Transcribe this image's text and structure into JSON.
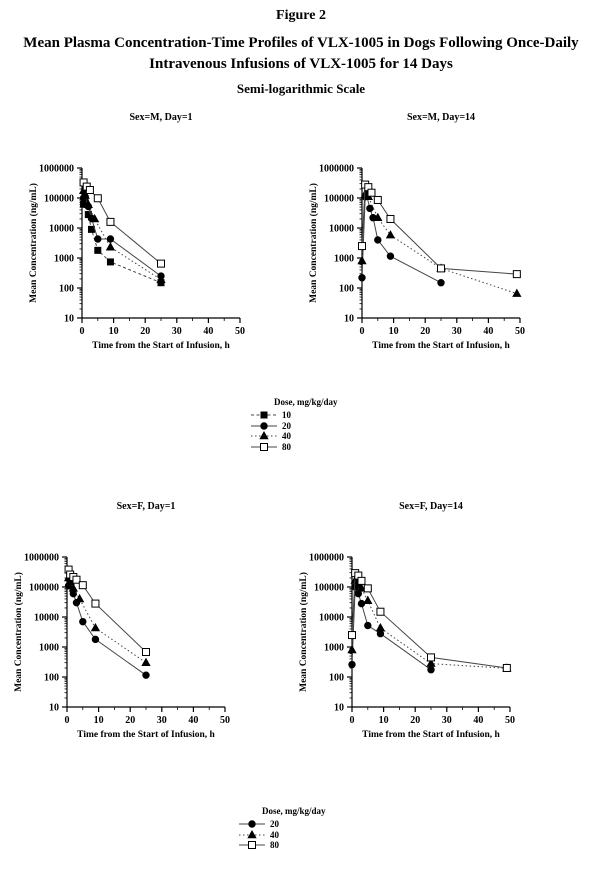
{
  "header": {
    "figure_label": "Figure 2",
    "title": "Mean Plasma Concentration-Time Profiles of VLX-1005 in Dogs Following Once-Daily Intravenous Infusions of VLX-1005 for 14 Days",
    "scale_note": "Semi-logarithmic Scale"
  },
  "axes": {
    "xlabel": "Time from the Start of Infusion, h",
    "ylabel": "Mean Concentration (ng/mL)",
    "xlim": [
      0,
      50
    ],
    "ylim": [
      10,
      1000000
    ],
    "x_major_ticks": [
      0,
      10,
      20,
      30,
      40,
      50
    ],
    "x_minor_ticks": [
      5,
      15,
      25,
      35,
      45
    ],
    "y_major_ticks": [
      10,
      100,
      1000,
      10000,
      100000,
      1000000
    ],
    "y_scale": "log",
    "grid": "off"
  },
  "marker_styles": {
    "10": {
      "shape": "square",
      "open": false,
      "dash": "3,2.5",
      "line_color": "#444444"
    },
    "20": {
      "shape": "circle",
      "open": false,
      "dash": "",
      "line_color": "#444444"
    },
    "40": {
      "shape": "triangle",
      "open": false,
      "dash": "1.5,2.5",
      "line_color": "#444444"
    },
    "80": {
      "shape": "square",
      "open": true,
      "dash": "",
      "line_color": "#444444"
    }
  },
  "colors": {
    "foreground": "#000000",
    "background": "#ffffff",
    "line": "#444444"
  },
  "legends": {
    "male": {
      "title": "Dose, mg/kg/day",
      "items": [
        "10",
        "20",
        "40",
        "80"
      ]
    },
    "female": {
      "title": "Dose, mg/kg/day",
      "items": [
        "20",
        "40",
        "80"
      ]
    }
  },
  "chart_data": [
    {
      "type": "line",
      "title": "Sex=M, Day=1",
      "xlabel": "Time from the Start of Infusion, h",
      "ylabel": "Mean Concentration (ng/mL)",
      "xlim": [
        0,
        50
      ],
      "ylim": [
        10,
        1000000
      ],
      "y_scale": "log",
      "legend_position": "below-figure",
      "series": [
        {
          "name": "10",
          "dose_mg_kg_day": 10,
          "x": [
            0.5,
            1,
            2,
            3,
            5,
            9,
            25
          ],
          "y": [
            62000,
            70000,
            28000,
            9000,
            1800,
            740,
            150
          ]
        },
        {
          "name": "20",
          "dose_mg_kg_day": 20,
          "x": [
            0.5,
            1,
            2,
            3,
            5,
            9,
            25
          ],
          "y": [
            100000,
            110000,
            52000,
            21000,
            4300,
            4300,
            250
          ]
        },
        {
          "name": "40",
          "dose_mg_kg_day": 40,
          "x": [
            0.5,
            1,
            2,
            4,
            9,
            25
          ],
          "y": [
            175000,
            120000,
            60000,
            20000,
            2300,
            190
          ]
        },
        {
          "name": "80",
          "dose_mg_kg_day": 80,
          "x": [
            0.5,
            1.5,
            2.5,
            5,
            9,
            25
          ],
          "y": [
            330000,
            240000,
            185000,
            98000,
            16000,
            650
          ]
        }
      ]
    },
    {
      "type": "line",
      "title": "Sex=M, Day=14",
      "xlabel": "Time from the Start of Infusion, h",
      "ylabel": "Mean Concentration (ng/mL)",
      "xlim": [
        0,
        50
      ],
      "ylim": [
        10,
        1000000
      ],
      "y_scale": "log",
      "legend_position": "below-figure",
      "series": [
        {
          "name": "20",
          "dose_mg_kg_day": 20,
          "x": [
            0,
            1,
            1.5,
            2.5,
            3.5,
            5,
            9,
            25
          ],
          "y": [
            220,
            110000,
            120000,
            45000,
            22000,
            4000,
            1150,
            150
          ]
        },
        {
          "name": "40",
          "dose_mg_kg_day": 40,
          "x": [
            0,
            1,
            1.5,
            2,
            5,
            9,
            25,
            49
          ],
          "y": [
            800,
            130000,
            165000,
            110000,
            22000,
            5800,
            450,
            65
          ]
        },
        {
          "name": "80",
          "dose_mg_kg_day": 80,
          "x": [
            0,
            1,
            2,
            3,
            5,
            9,
            25,
            49
          ],
          "y": [
            2500,
            280000,
            230000,
            150000,
            86000,
            20000,
            450,
            290
          ]
        }
      ]
    },
    {
      "type": "line",
      "title": "Sex=F, Day=1",
      "xlabel": "Time from the Start of Infusion, h",
      "ylabel": "Mean Concentration (ng/mL)",
      "xlim": [
        0,
        50
      ],
      "ylim": [
        10,
        1000000
      ],
      "y_scale": "log",
      "legend_position": "below-figure",
      "series": [
        {
          "name": "20",
          "dose_mg_kg_day": 20,
          "x": [
            0.5,
            1,
            2,
            3,
            5,
            9,
            25
          ],
          "y": [
            110000,
            120000,
            60000,
            30000,
            7000,
            1800,
            115
          ]
        },
        {
          "name": "40",
          "dose_mg_kg_day": 40,
          "x": [
            0.5,
            1,
            2,
            4,
            9,
            25
          ],
          "y": [
            200000,
            150000,
            90000,
            40000,
            4300,
            300
          ]
        },
        {
          "name": "80",
          "dose_mg_kg_day": 80,
          "x": [
            0.5,
            1,
            2,
            3,
            5,
            9,
            25
          ],
          "y": [
            380000,
            260000,
            215000,
            175000,
            115000,
            28000,
            680
          ]
        }
      ]
    },
    {
      "type": "line",
      "title": "Sex=F, Day=14",
      "xlabel": "Time from the Start of Infusion, h",
      "ylabel": "Mean Concentration (ng/mL)",
      "xlim": [
        0,
        50
      ],
      "ylim": [
        10,
        1000000
      ],
      "y_scale": "log",
      "legend_position": "below-figure",
      "series": [
        {
          "name": "20",
          "dose_mg_kg_day": 20,
          "x": [
            0,
            1,
            1.5,
            2,
            3,
            5,
            9,
            25
          ],
          "y": [
            260,
            100000,
            120000,
            60000,
            28000,
            5200,
            2800,
            175
          ]
        },
        {
          "name": "40",
          "dose_mg_kg_day": 40,
          "x": [
            0,
            1,
            2,
            3,
            5,
            9,
            25,
            49
          ],
          "y": [
            800,
            165000,
            120000,
            90000,
            35000,
            4300,
            280,
            195
          ]
        },
        {
          "name": "80",
          "dose_mg_kg_day": 80,
          "x": [
            0,
            1,
            2,
            3,
            5,
            9,
            25,
            49
          ],
          "y": [
            2500,
            290000,
            240000,
            160000,
            90000,
            15000,
            450,
            200
          ]
        }
      ]
    }
  ]
}
